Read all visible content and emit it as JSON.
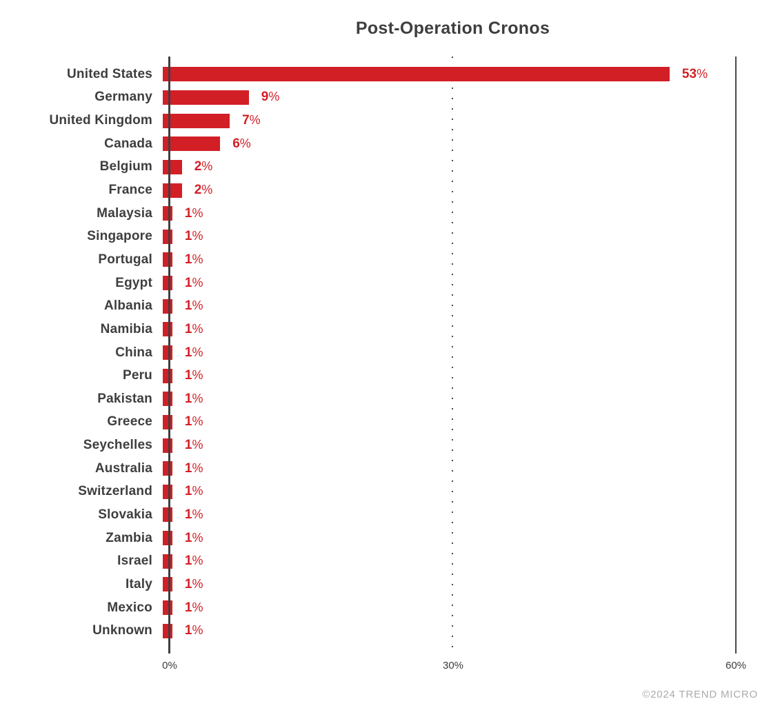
{
  "title": "Post-Operation Cronos",
  "footer": "©2024 TREND MICRO",
  "chart_data": {
    "type": "bar",
    "orientation": "horizontal",
    "title": "Post-Operation Cronos",
    "xlabel": "",
    "ylabel": "",
    "xlim": [
      0,
      60
    ],
    "x_ticks": [
      "0%",
      "30%",
      "60%"
    ],
    "x_tick_values": [
      0,
      30,
      60
    ],
    "gridline_at": 30,
    "legend": "none",
    "bar_color": "#d21f26",
    "value_label_color": "#d21f26",
    "category_label_color": "#3e3e3e",
    "categories": [
      "United States",
      "Germany",
      "United Kingdom",
      "Canada",
      "Belgium",
      "France",
      "Malaysia",
      "Singapore",
      "Portugal",
      "Egypt",
      "Albania",
      "Namibia",
      "China",
      "Peru",
      "Pakistan",
      "Greece",
      "Seychelles",
      "Australia",
      "Switzerland",
      "Slovakia",
      "Zambia",
      "Israel",
      "Italy",
      "Mexico",
      "Unknown"
    ],
    "values": [
      53,
      9,
      7,
      6,
      2,
      2,
      1,
      1,
      1,
      1,
      1,
      1,
      1,
      1,
      1,
      1,
      1,
      1,
      1,
      1,
      1,
      1,
      1,
      1,
      1
    ],
    "value_labels": [
      "53%",
      "9%",
      "7%",
      "6%",
      "2%",
      "2%",
      "1%",
      "1%",
      "1%",
      "1%",
      "1%",
      "1%",
      "1%",
      "1%",
      "1%",
      "1%",
      "1%",
      "1%",
      "1%",
      "1%",
      "1%",
      "1%",
      "1%",
      "1%",
      "1%"
    ]
  }
}
